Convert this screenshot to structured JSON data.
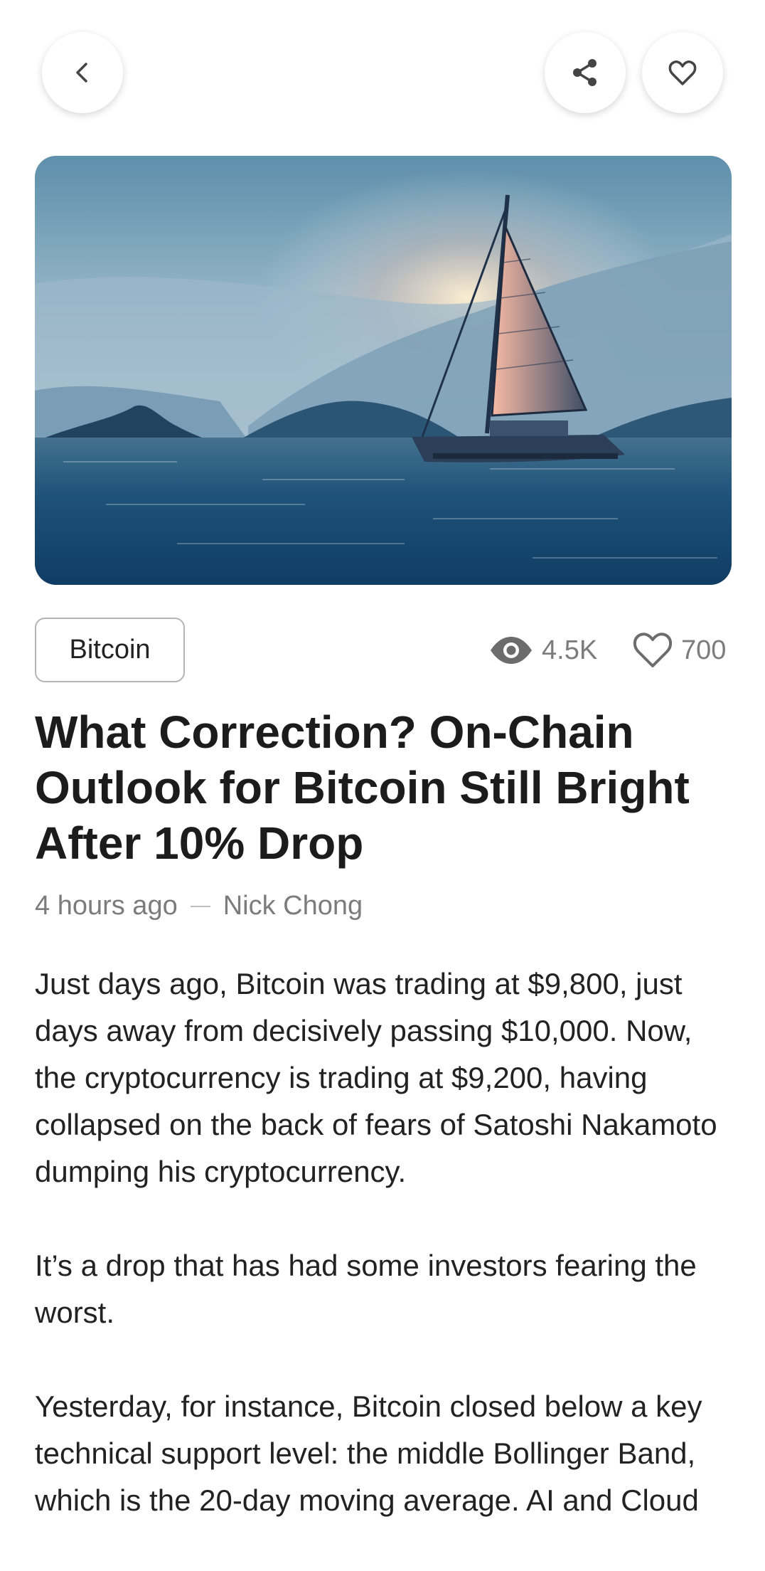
{
  "header": {
    "back_icon": "chevron-left-icon",
    "share_icon": "share-icon",
    "favorite_icon": "heart-icon"
  },
  "hero": {
    "image": "sailboat-at-sunset-photo"
  },
  "article": {
    "tag": "Bitcoin",
    "views": "4.5K",
    "likes": "700",
    "title": "What Correction? On-Chain Outlook for Bitcoin Still Bright After 10% Drop",
    "time": "4 hours ago",
    "author": "Nick Chong",
    "paragraphs": [
      "Just days ago, Bitcoin was trading at $9,800, just days away from decisively passing $10,000. Now, the cryptocurrency is trading at $9,200, having collapsed on the back of fears of Satoshi Nakamoto dumping his cryptocurrency.",
      "It’s a drop that has had some investors fearing the worst.",
      "Yesterday, for instance, Bitcoin closed below a key technical support level: the middle Bollinger Band, which is the 20-day moving average. AI and Cloud"
    ]
  },
  "colors": {
    "text": "#1c1c1c",
    "muted": "#7c7c7c",
    "border": "#b4b4b4"
  }
}
